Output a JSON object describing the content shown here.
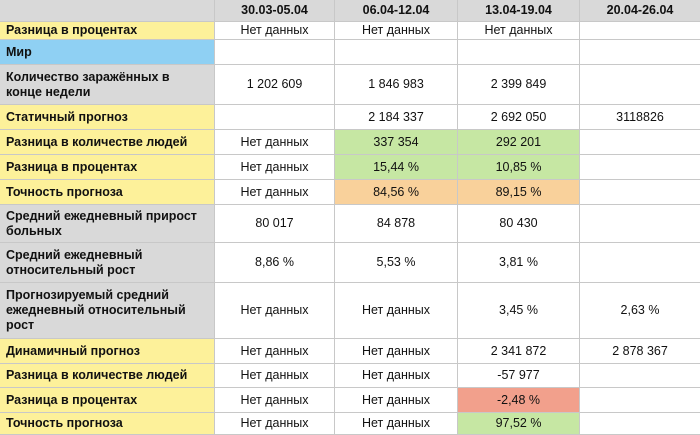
{
  "header": {
    "col0": "",
    "periods": [
      "30.03-05.04",
      "06.04-12.04",
      "13.04-19.04",
      "20.04-26.04"
    ]
  },
  "rows": [
    {
      "label": "Разница в процентах",
      "values": [
        "Нет данных",
        "Нет данных",
        "Нет данных",
        ""
      ],
      "label_bg": "yellow",
      "cell_bg": [
        "",
        "",
        "",
        ""
      ]
    },
    {
      "label": "Мир",
      "values": [
        "",
        "",
        "",
        ""
      ],
      "label_bg": "blue",
      "cell_bg": [
        "",
        "",
        "",
        ""
      ]
    },
    {
      "label": "Количество заражённых в конце недели",
      "values": [
        "1 202 609",
        "1 846 983",
        "2 399 849",
        ""
      ],
      "label_bg": "gray",
      "cell_bg": [
        "",
        "",
        "",
        ""
      ]
    },
    {
      "label": "Статичный прогноз",
      "values": [
        "",
        "2 184 337",
        "2 692 050",
        "3118826"
      ],
      "label_bg": "yellow",
      "cell_bg": [
        "",
        "",
        "",
        ""
      ]
    },
    {
      "label": "Разница в количестве людей",
      "values": [
        "Нет данных",
        "337 354",
        "292 201",
        ""
      ],
      "label_bg": "yellow",
      "cell_bg": [
        "",
        "green",
        "green",
        ""
      ]
    },
    {
      "label": "Разница в процентах",
      "values": [
        "Нет данных",
        "15,44 %",
        "10,85 %",
        ""
      ],
      "label_bg": "yellow",
      "cell_bg": [
        "",
        "green",
        "green",
        ""
      ]
    },
    {
      "label": "Точность прогноза",
      "values": [
        "Нет данных",
        "84,56 %",
        "89,15 %",
        ""
      ],
      "label_bg": "yellow",
      "cell_bg": [
        "",
        "orange",
        "orange",
        ""
      ]
    },
    {
      "label": "Средний ежедневный прирост больных",
      "values": [
        "80 017",
        "84 878",
        "80 430",
        ""
      ],
      "label_bg": "gray",
      "cell_bg": [
        "",
        "",
        "",
        ""
      ]
    },
    {
      "label": "Средний ежедневный относительный рост",
      "values": [
        "8,86 %",
        "5,53 %",
        "3,81 %",
        ""
      ],
      "label_bg": "gray",
      "cell_bg": [
        "",
        "",
        "",
        ""
      ]
    },
    {
      "label": "Прогнозируемый средний ежедневный  относительный рост",
      "values": [
        "Нет данных",
        "Нет данных",
        "3,45 %",
        "2,63 %"
      ],
      "label_bg": "gray",
      "cell_bg": [
        "",
        "",
        "",
        ""
      ]
    },
    {
      "label": "Динамичный прогноз",
      "values": [
        "Нет данных",
        "Нет данных",
        "2 341 872",
        "2 878 367"
      ],
      "label_bg": "yellow",
      "cell_bg": [
        "",
        "",
        "",
        ""
      ]
    },
    {
      "label": "Разница в количестве людей",
      "values": [
        "Нет данных",
        "Нет данных",
        "-57 977",
        ""
      ],
      "label_bg": "yellow",
      "cell_bg": [
        "",
        "",
        "",
        ""
      ]
    },
    {
      "label": "Разница в процентах",
      "values": [
        "Нет данных",
        "Нет данных",
        "-2,48 %",
        ""
      ],
      "label_bg": "yellow",
      "cell_bg": [
        "",
        "",
        "red",
        ""
      ]
    },
    {
      "label": "Точность прогноза",
      "values": [
        "Нет данных",
        "Нет данных",
        "97,52 %",
        ""
      ],
      "label_bg": "yellow",
      "cell_bg": [
        "",
        "",
        "green",
        ""
      ]
    }
  ]
}
